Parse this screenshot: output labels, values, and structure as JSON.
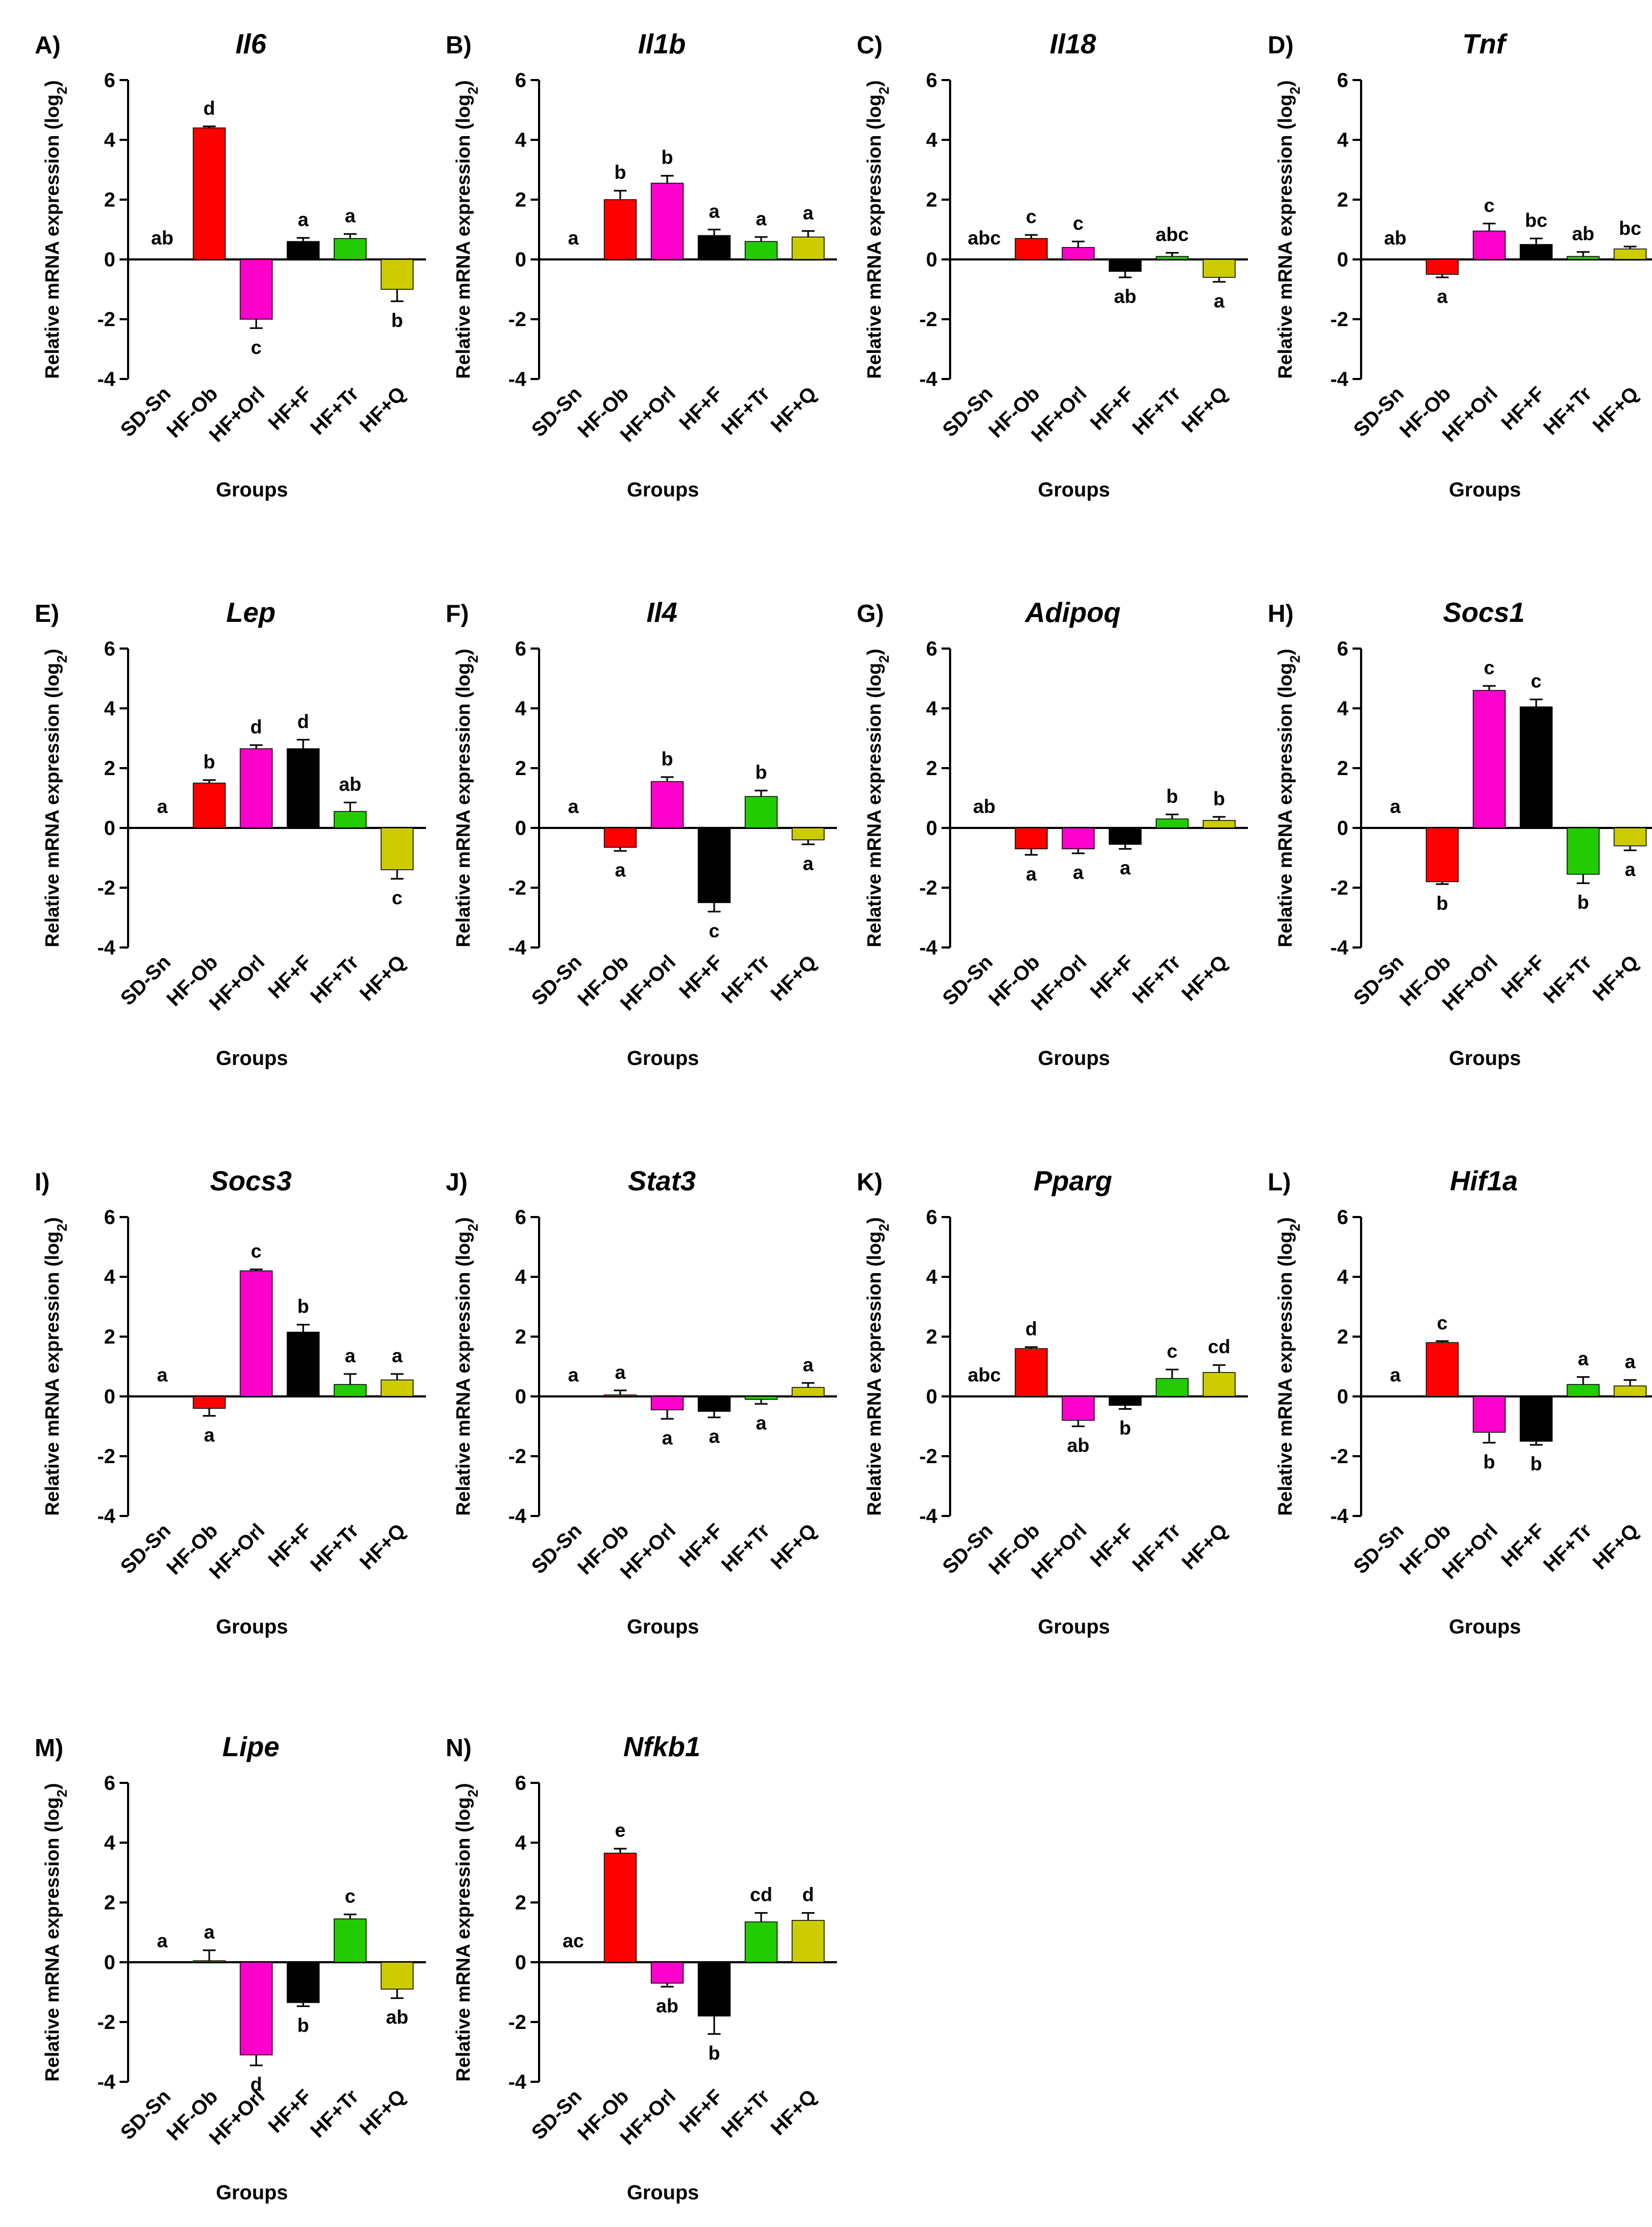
{
  "figure": {
    "x_categories_note": "shared"
  },
  "chart_data": [
    {
      "type": "bar",
      "panel": "A)",
      "title": "Il6",
      "xlabel": "Groups",
      "ylabel": "Relative mRNA expression (log2)",
      "ylim": [
        -4,
        6
      ],
      "yticks": [
        -4,
        -2,
        0,
        2,
        4,
        6
      ],
      "categories": [
        "SD-Sn",
        "HF-Ob",
        "HF+Orl",
        "HF+F",
        "HF+Tr",
        "HF+Q"
      ],
      "values": [
        0,
        4.4,
        -2.0,
        0.6,
        0.7,
        -1.0
      ],
      "errors": [
        0,
        0.05,
        0.3,
        0.12,
        0.15,
        0.4
      ],
      "labels": [
        "ab",
        "d",
        "c",
        "a",
        "a",
        "b"
      ],
      "colors": [
        "#ffffff",
        "#ff0000",
        "#ff00cc",
        "#000000",
        "#22cc00",
        "#cccc00"
      ]
    },
    {
      "type": "bar",
      "panel": "B)",
      "title": "Il1b",
      "xlabel": "Groups",
      "ylabel": "Relative mRNA expression (log2)",
      "ylim": [
        -4,
        6
      ],
      "yticks": [
        -4,
        -2,
        0,
        2,
        4,
        6
      ],
      "categories": [
        "SD-Sn",
        "HF-Ob",
        "HF+Orl",
        "HF+F",
        "HF+Tr",
        "HF+Q"
      ],
      "values": [
        0,
        2.0,
        2.55,
        0.8,
        0.6,
        0.75
      ],
      "errors": [
        0,
        0.3,
        0.25,
        0.2,
        0.15,
        0.2
      ],
      "labels": [
        "a",
        "b",
        "b",
        "a",
        "a",
        "a"
      ],
      "colors": [
        "#ffffff",
        "#ff0000",
        "#ff00cc",
        "#000000",
        "#22cc00",
        "#cccc00"
      ]
    },
    {
      "type": "bar",
      "panel": "C)",
      "title": "Il18",
      "xlabel": "Groups",
      "ylabel": "Relative mRNA expression (log2)",
      "ylim": [
        -4,
        6
      ],
      "yticks": [
        -4,
        -2,
        0,
        2,
        4,
        6
      ],
      "categories": [
        "SD-Sn",
        "HF-Ob",
        "HF+Orl",
        "HF+F",
        "HF+Tr",
        "HF+Q"
      ],
      "values": [
        0,
        0.7,
        0.4,
        -0.4,
        0.1,
        -0.6
      ],
      "errors": [
        0,
        0.12,
        0.2,
        0.2,
        0.12,
        0.15
      ],
      "labels": [
        "abc",
        "c",
        "c",
        "ab",
        "abc",
        "a"
      ],
      "colors": [
        "#ffffff",
        "#ff0000",
        "#ff00cc",
        "#000000",
        "#22cc00",
        "#cccc00"
      ]
    },
    {
      "type": "bar",
      "panel": "D)",
      "title": "Tnf",
      "xlabel": "Groups",
      "ylabel": "Relative mRNA expression (log2)",
      "ylim": [
        -4,
        6
      ],
      "yticks": [
        -4,
        -2,
        0,
        2,
        4,
        6
      ],
      "categories": [
        "SD-Sn",
        "HF-Ob",
        "HF+Orl",
        "HF+F",
        "HF+Tr",
        "HF+Q"
      ],
      "values": [
        0,
        -0.5,
        0.95,
        0.5,
        0.1,
        0.35
      ],
      "errors": [
        0,
        0.1,
        0.25,
        0.2,
        0.15,
        0.08
      ],
      "labels": [
        "ab",
        "a",
        "c",
        "bc",
        "ab",
        "bc"
      ],
      "colors": [
        "#ffffff",
        "#ff0000",
        "#ff00cc",
        "#000000",
        "#22cc00",
        "#cccc00"
      ]
    },
    {
      "type": "bar",
      "panel": "E)",
      "title": "Lep",
      "xlabel": "Groups",
      "ylabel": "Relative mRNA expression (log2)",
      "ylim": [
        -4,
        6
      ],
      "yticks": [
        -4,
        -2,
        0,
        2,
        4,
        6
      ],
      "categories": [
        "SD-Sn",
        "HF-Ob",
        "HF+Orl",
        "HF+F",
        "HF+Tr",
        "HF+Q"
      ],
      "values": [
        0,
        1.5,
        2.65,
        2.65,
        0.55,
        -1.4
      ],
      "errors": [
        0,
        0.1,
        0.12,
        0.3,
        0.3,
        0.3
      ],
      "labels": [
        "a",
        "b",
        "d",
        "d",
        "ab",
        "c"
      ],
      "colors": [
        "#ffffff",
        "#ff0000",
        "#ff00cc",
        "#000000",
        "#22cc00",
        "#cccc00"
      ]
    },
    {
      "type": "bar",
      "panel": "F)",
      "title": "Il4",
      "xlabel": "Groups",
      "ylabel": "Relative mRNA expression (log2)",
      "ylim": [
        -4,
        6
      ],
      "yticks": [
        -4,
        -2,
        0,
        2,
        4,
        6
      ],
      "categories": [
        "SD-Sn",
        "HF-Ob",
        "HF+Orl",
        "HF+F",
        "HF+Tr",
        "HF+Q"
      ],
      "values": [
        0,
        -0.65,
        1.55,
        -2.5,
        1.05,
        -0.4
      ],
      "errors": [
        0,
        0.12,
        0.15,
        0.3,
        0.2,
        0.15
      ],
      "labels": [
        "a",
        "a",
        "b",
        "c",
        "b",
        "a"
      ],
      "colors": [
        "#ffffff",
        "#ff0000",
        "#ff00cc",
        "#000000",
        "#22cc00",
        "#cccc00"
      ]
    },
    {
      "type": "bar",
      "panel": "G)",
      "title": "Adipoq",
      "xlabel": "Groups",
      "ylabel": "Relative mRNA expression (log2)",
      "ylim": [
        -4,
        6
      ],
      "yticks": [
        -4,
        -2,
        0,
        2,
        4,
        6
      ],
      "categories": [
        "SD-Sn",
        "HF-Ob",
        "HF+Orl",
        "HF+F",
        "HF+Tr",
        "HF+Q"
      ],
      "values": [
        0,
        -0.7,
        -0.7,
        -0.55,
        0.3,
        0.25
      ],
      "errors": [
        0,
        0.2,
        0.15,
        0.15,
        0.15,
        0.12
      ],
      "labels": [
        "ab",
        "a",
        "a",
        "a",
        "b",
        "b"
      ],
      "colors": [
        "#ffffff",
        "#ff0000",
        "#ff00cc",
        "#000000",
        "#22cc00",
        "#cccc00"
      ]
    },
    {
      "type": "bar",
      "panel": "H)",
      "title": "Socs1",
      "xlabel": "Groups",
      "ylabel": "Relative mRNA expression (log2)",
      "ylim": [
        -4,
        6
      ],
      "yticks": [
        -4,
        -2,
        0,
        2,
        4,
        6
      ],
      "categories": [
        "SD-Sn",
        "HF-Ob",
        "HF+Orl",
        "HF+F",
        "HF+Tr",
        "HF+Q"
      ],
      "values": [
        0,
        -1.8,
        4.6,
        4.05,
        -1.55,
        -0.6
      ],
      "errors": [
        0,
        0.08,
        0.15,
        0.25,
        0.3,
        0.15
      ],
      "labels": [
        "a",
        "b",
        "c",
        "c",
        "b",
        "a"
      ],
      "colors": [
        "#ffffff",
        "#ff0000",
        "#ff00cc",
        "#000000",
        "#22cc00",
        "#cccc00"
      ]
    },
    {
      "type": "bar",
      "panel": "I)",
      "title": "Socs3",
      "xlabel": "Groups",
      "ylabel": "Relative mRNA expression (log2)",
      "ylim": [
        -4,
        6
      ],
      "yticks": [
        -4,
        -2,
        0,
        2,
        4,
        6
      ],
      "categories": [
        "SD-Sn",
        "HF-Ob",
        "HF+Orl",
        "HF+F",
        "HF+Tr",
        "HF+Q"
      ],
      "values": [
        0,
        -0.4,
        4.2,
        2.15,
        0.4,
        0.55
      ],
      "errors": [
        0,
        0.25,
        0.05,
        0.25,
        0.35,
        0.2
      ],
      "labels": [
        "a",
        "a",
        "c",
        "b",
        "a",
        "a"
      ],
      "colors": [
        "#ffffff",
        "#ff0000",
        "#ff00cc",
        "#000000",
        "#22cc00",
        "#cccc00"
      ]
    },
    {
      "type": "bar",
      "panel": "J)",
      "title": "Stat3",
      "xlabel": "Groups",
      "ylabel": "Relative mRNA expression (log2)",
      "ylim": [
        -4,
        6
      ],
      "yticks": [
        -4,
        -2,
        0,
        2,
        4,
        6
      ],
      "categories": [
        "SD-Sn",
        "HF-Ob",
        "HF+Orl",
        "HF+F",
        "HF+Tr",
        "HF+Q"
      ],
      "values": [
        0,
        0.05,
        -0.45,
        -0.5,
        -0.1,
        0.3
      ],
      "errors": [
        0,
        0.15,
        0.3,
        0.2,
        0.15,
        0.15
      ],
      "labels": [
        "a",
        "a",
        "a",
        "a",
        "a",
        "a"
      ],
      "colors": [
        "#ffffff",
        "#ff0000",
        "#ff00cc",
        "#000000",
        "#22cc00",
        "#cccc00"
      ]
    },
    {
      "type": "bar",
      "panel": "K)",
      "title": "Pparg",
      "xlabel": "Groups",
      "ylabel": "Relative mRNA expression (log2)",
      "ylim": [
        -4,
        6
      ],
      "yticks": [
        -4,
        -2,
        0,
        2,
        4,
        6
      ],
      "categories": [
        "SD-Sn",
        "HF-Ob",
        "HF+Orl",
        "HF+F",
        "HF+Tr",
        "HF+Q"
      ],
      "values": [
        0,
        1.6,
        -0.8,
        -0.3,
        0.6,
        0.8
      ],
      "errors": [
        0,
        0.05,
        0.2,
        0.12,
        0.3,
        0.25
      ],
      "labels": [
        "abc",
        "d",
        "ab",
        "b",
        "c",
        "cd"
      ],
      "colors": [
        "#ffffff",
        "#ff0000",
        "#ff00cc",
        "#000000",
        "#22cc00",
        "#cccc00"
      ]
    },
    {
      "type": "bar",
      "panel": "L)",
      "title": "Hif1a",
      "xlabel": "Groups",
      "ylabel": "Relative mRNA expression (log2)",
      "ylim": [
        -4,
        6
      ],
      "yticks": [
        -4,
        -2,
        0,
        2,
        4,
        6
      ],
      "categories": [
        "SD-Sn",
        "HF-Ob",
        "HF+Orl",
        "HF+F",
        "HF+Tr",
        "HF+Q"
      ],
      "values": [
        0,
        1.8,
        -1.2,
        -1.5,
        0.4,
        0.35
      ],
      "errors": [
        0,
        0.05,
        0.35,
        0.12,
        0.25,
        0.2
      ],
      "labels": [
        "a",
        "c",
        "b",
        "b",
        "a",
        "a"
      ],
      "colors": [
        "#ffffff",
        "#ff0000",
        "#ff00cc",
        "#000000",
        "#22cc00",
        "#cccc00"
      ]
    },
    {
      "type": "bar",
      "panel": "M)",
      "title": "Lipe",
      "xlabel": "Groups",
      "ylabel": "Relative mRNA expression (log2)",
      "ylim": [
        -4,
        6
      ],
      "yticks": [
        -4,
        -2,
        0,
        2,
        4,
        6
      ],
      "categories": [
        "SD-Sn",
        "HF-Ob",
        "HF+Orl",
        "HF+F",
        "HF+Tr",
        "HF+Q"
      ],
      "values": [
        0,
        0.05,
        -3.1,
        -1.35,
        1.45,
        -0.9
      ],
      "errors": [
        0,
        0.35,
        0.35,
        0.12,
        0.15,
        0.3
      ],
      "labels": [
        "a",
        "a",
        "d",
        "b",
        "c",
        "ab"
      ],
      "colors": [
        "#ffffff",
        "#ff0000",
        "#ff00cc",
        "#000000",
        "#22cc00",
        "#cccc00"
      ]
    },
    {
      "type": "bar",
      "panel": "N)",
      "title": "Nfkb1",
      "xlabel": "Groups",
      "ylabel": "Relative mRNA expression (log2)",
      "ylim": [
        -4,
        6
      ],
      "yticks": [
        -4,
        -2,
        0,
        2,
        4,
        6
      ],
      "categories": [
        "SD-Sn",
        "HF-Ob",
        "HF+Orl",
        "HF+F",
        "HF+Tr",
        "HF+Q"
      ],
      "values": [
        0,
        3.65,
        -0.7,
        -1.8,
        1.35,
        1.4
      ],
      "errors": [
        0,
        0.15,
        0.12,
        0.6,
        0.3,
        0.25
      ],
      "labels": [
        "ac",
        "e",
        "ab",
        "b",
        "cd",
        "d"
      ],
      "colors": [
        "#ffffff",
        "#ff0000",
        "#ff00cc",
        "#000000",
        "#22cc00",
        "#cccc00"
      ]
    }
  ]
}
